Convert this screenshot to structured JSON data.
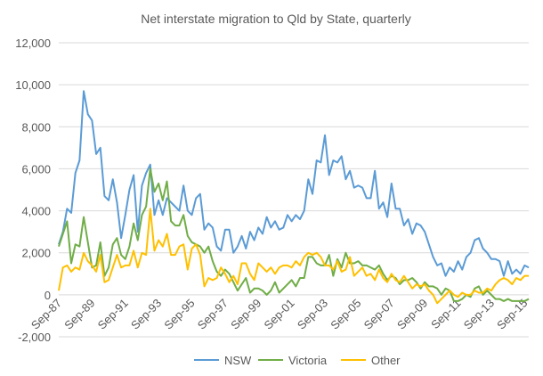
{
  "chart_data": {
    "type": "line",
    "title": "Net interstate migration to Qld by State, quarterly",
    "xlabel": "",
    "ylabel": "",
    "ylim": [
      -2000,
      12000
    ],
    "y_ticks": [
      -2000,
      0,
      2000,
      4000,
      6000,
      8000,
      10000,
      12000
    ],
    "y_tick_labels": [
      "-2,000",
      "0",
      "2,000",
      "4,000",
      "6,000",
      "8,000",
      "10,000",
      "12,000"
    ],
    "x_tick_labels": [
      "Sep-87",
      "Sep-89",
      "Sep-91",
      "Sep-93",
      "Sep-95",
      "Sep-97",
      "Sep-99",
      "Sep-01",
      "Sep-03",
      "Sep-05",
      "Sep-07",
      "Sep-09",
      "Sep-11",
      "Sep-13",
      "Sep-15"
    ],
    "x_start": "Sep-87",
    "x_end": "Dec-15",
    "quarters": 114,
    "legend_position": "bottom",
    "series": [
      {
        "name": "NSW",
        "color": "#5b9bd5",
        "values": [
          2400,
          3000,
          4100,
          3900,
          5800,
          6400,
          9700,
          8600,
          8300,
          6700,
          7000,
          4700,
          4500,
          5500,
          4400,
          2700,
          3800,
          5000,
          5700,
          3000,
          5200,
          5800,
          6200,
          3800,
          4500,
          3800,
          4600,
          4400,
          4200,
          4000,
          5200,
          4000,
          3800,
          4600,
          4800,
          3100,
          3400,
          3200,
          2300,
          2100,
          3100,
          3100,
          2000,
          2300,
          2800,
          2200,
          3000,
          2600,
          3200,
          2900,
          3700,
          3200,
          3500,
          3100,
          3200,
          3800,
          3500,
          3800,
          3600,
          4000,
          5500,
          4800,
          6400,
          6300,
          7600,
          5700,
          6400,
          6300,
          6600,
          5500,
          5900,
          5100,
          5200,
          5100,
          4600,
          4600,
          5900,
          4100,
          4400,
          3700,
          5300,
          4100,
          4100,
          3300,
          3600,
          2900,
          3400,
          3300,
          3000,
          2400,
          1800,
          1400,
          1500,
          900,
          1300,
          1100,
          1600,
          1200,
          1800,
          2000,
          2600,
          2700,
          2200,
          2000,
          1700,
          1700,
          1600,
          900,
          1600,
          1000,
          1200,
          1000,
          1400,
          1300
        ]
      },
      {
        "name": "Victoria",
        "color": "#70ad47",
        "values": [
          2300,
          2900,
          3500,
          1500,
          2400,
          2300,
          3700,
          2500,
          1300,
          1400,
          2500,
          900,
          1300,
          2400,
          2700,
          1900,
          1700,
          2300,
          3400,
          2600,
          3800,
          4200,
          6000,
          4900,
          5300,
          4500,
          5400,
          3500,
          3300,
          3300,
          3800,
          2800,
          2500,
          2400,
          2300,
          2000,
          2300,
          1600,
          1100,
          900,
          1200,
          1000,
          600,
          200,
          500,
          800,
          100,
          300,
          300,
          200,
          0,
          200,
          600,
          100,
          300,
          500,
          700,
          400,
          800,
          800,
          1800,
          1800,
          1500,
          1400,
          1400,
          1900,
          900,
          1700,
          1300,
          2000,
          1500,
          1500,
          1600,
          1400,
          1400,
          1300,
          1200,
          1400,
          1000,
          700,
          900,
          800,
          500,
          700,
          700,
          800,
          600,
          300,
          600,
          400,
          400,
          300,
          0,
          300,
          200,
          -300,
          -300,
          -200,
          0,
          -100,
          300,
          400,
          0,
          200,
          0,
          -200,
          -200,
          -300,
          -200,
          -300,
          -300,
          -300,
          -300,
          -200
        ]
      },
      {
        "name": "Other",
        "color": "#ffc000",
        "values": [
          200,
          1300,
          1400,
          1100,
          1300,
          1200,
          2000,
          1600,
          1400,
          1100,
          1900,
          600,
          700,
          1300,
          1900,
          1300,
          1400,
          1400,
          2100,
          1300,
          2000,
          1900,
          4100,
          2100,
          2600,
          2300,
          2900,
          1900,
          1900,
          2300,
          2400,
          1200,
          2200,
          2400,
          1900,
          400,
          800,
          700,
          800,
          1300,
          1000,
          600,
          900,
          500,
          1500,
          1500,
          1000,
          700,
          1500,
          1300,
          1100,
          1300,
          1000,
          1300,
          1400,
          1400,
          1300,
          1600,
          1400,
          1800,
          2000,
          1900,
          2000,
          1800,
          1400,
          1400,
          1200,
          1600,
          1100,
          1200,
          1800,
          900,
          1100,
          1300,
          900,
          1000,
          700,
          1200,
          800,
          600,
          1000,
          700,
          600,
          900,
          600,
          300,
          500,
          400,
          500,
          200,
          0,
          -400,
          -200,
          0,
          200,
          0,
          -100,
          100,
          0,
          0,
          200,
          100,
          100,
          300,
          200,
          500,
          700,
          800,
          700,
          500,
          800,
          700,
          900,
          900
        ]
      }
    ]
  }
}
